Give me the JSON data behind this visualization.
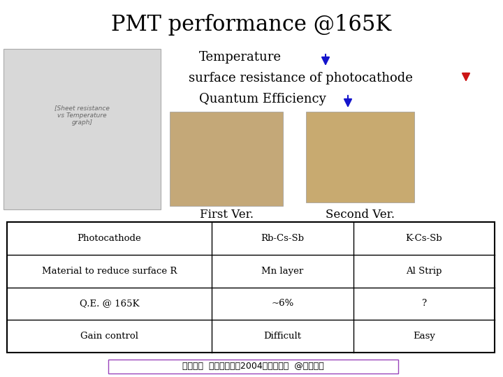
{
  "title": "PMT performance @165K",
  "background_color": "#ffffff",
  "title_fontsize": 22,
  "text_line1": "Temperature",
  "text_line2": "surface resistance of photocathode",
  "text_line3": "Quantum Efficiency",
  "text_fontsize": 13,
  "arrow_down_color": "#1414cc",
  "arrow_up_color": "#cc1414",
  "col_header1": "First Ver.",
  "col_header2": "Second Ver.",
  "col_header_fontsize": 12,
  "table_rows": [
    [
      "Photocathode",
      "Rb-Cs-Sb",
      "K-Cs-Sb"
    ],
    [
      "Material to reduce surface R",
      "Mn layer",
      "Al Strip"
    ],
    [
      "Q.E. @ 165K",
      "~6%",
      "?"
    ],
    [
      "Gain control",
      "Difficult",
      "Easy"
    ]
  ],
  "table_font_size": 9.5,
  "table_border_color": "#000000",
  "footer": "久松康子  日本物理学会2004年秋季大会  @高知大学",
  "footer_font_size": 9,
  "footer_border_color": "#9944bb"
}
